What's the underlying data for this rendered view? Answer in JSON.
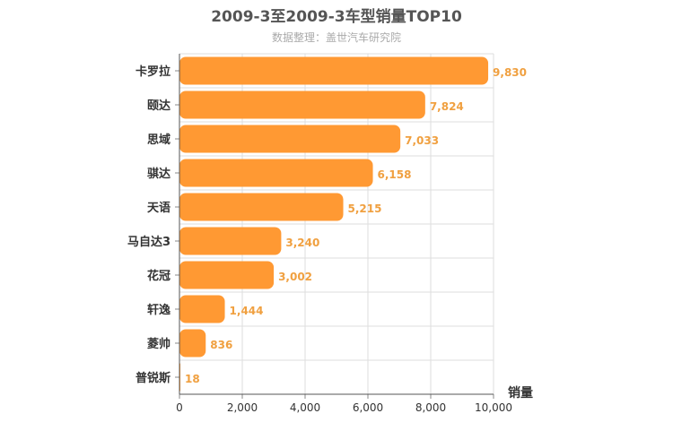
{
  "chart_data": {
    "type": "bar",
    "orientation": "horizontal",
    "title": "2009-3至2009-3车型销量TOP10",
    "subtitle": "数据整理：盖世汽车研究院",
    "categories": [
      "卡罗拉",
      "颐达",
      "思域",
      "骐达",
      "天语",
      "马自达3",
      "花冠",
      "轩逸",
      "菱帅",
      "普锐斯"
    ],
    "values": [
      9830,
      7824,
      7033,
      6158,
      5215,
      3240,
      3002,
      1444,
      836,
      18
    ],
    "value_labels": [
      "9,830",
      "7,824",
      "7,033",
      "6,158",
      "5,215",
      "3,240",
      "3,002",
      "1,444",
      "836",
      "18"
    ],
    "xlabel": "销量",
    "ylabel": "",
    "xlim": [
      0,
      10000
    ],
    "x_ticks": [
      0,
      2000,
      4000,
      6000,
      8000,
      10000
    ],
    "x_tick_labels": [
      "0",
      "2,000",
      "4,000",
      "6,000",
      "8,000",
      "10,000"
    ],
    "grid": true,
    "bar_color": "#ff9933",
    "label_color": "#f0a040"
  }
}
